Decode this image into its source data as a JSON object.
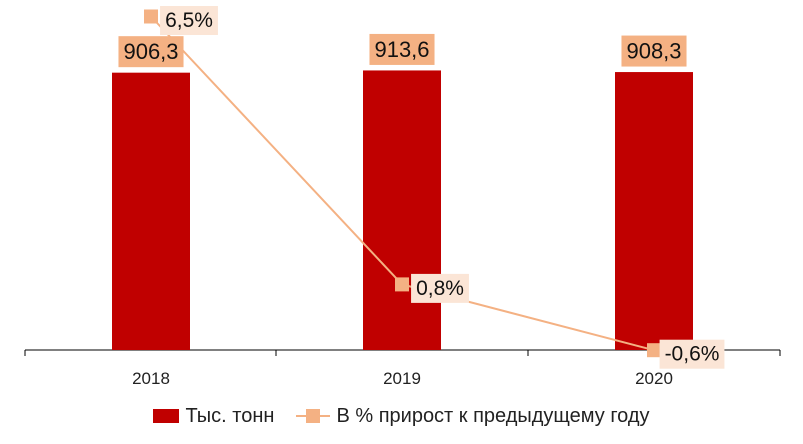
{
  "chart_data": {
    "type": "bar",
    "categories": [
      "2018",
      "2019",
      "2020"
    ],
    "series": [
      {
        "name": "Тыс. тонн",
        "kind": "bar",
        "values": [
          906.3,
          913.6,
          908.3
        ],
        "labels": [
          "906,3",
          "913,6",
          "908,3"
        ],
        "color": "#C00000"
      },
      {
        "name": "В % прирост к предыдущему году",
        "kind": "line",
        "values": [
          6.5,
          0.8,
          -0.6
        ],
        "labels": [
          "6,5%",
          "0,8%",
          "-0,6%"
        ],
        "color": "#F4B183"
      }
    ],
    "label_bg_bar": "#F4B183",
    "label_bg_line": "#FBE5D6",
    "legend_position": "bottom",
    "grid": false
  }
}
